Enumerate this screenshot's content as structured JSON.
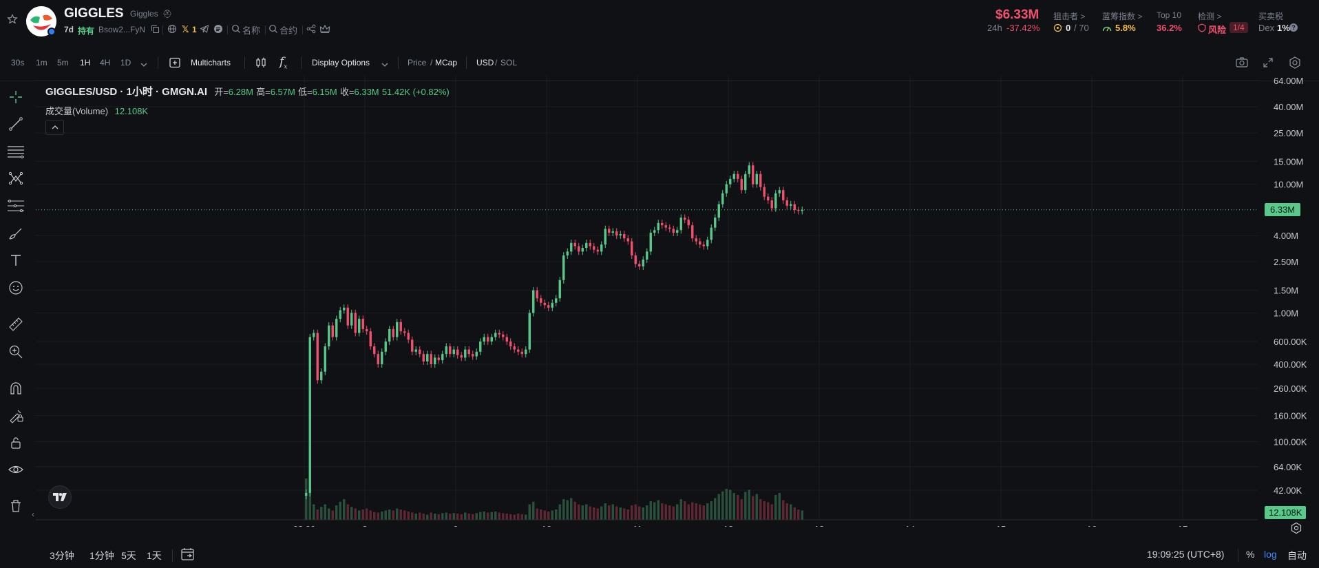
{
  "token": {
    "symbol": "GIGGLES",
    "name": "Giggles",
    "age": "7d",
    "holding_label": "持有",
    "address": "Bsow2...FyN",
    "x_count": "1",
    "name_label": "名称",
    "contract_label": "合约"
  },
  "stats": {
    "price": "$6.33M",
    "change_label": "24h",
    "change": "-37.42%",
    "snipers_label": "狙击者 >",
    "snipers_value": "0",
    "snipers_total": "/ 70",
    "bluechip_label": "蓝筹指数 >",
    "bluechip_value": "5.8%",
    "top10_label": "Top 10",
    "top10_value": "36.2%",
    "check_label": "检测 >",
    "risk_label": "风险",
    "risk_value": "1/4",
    "tax_label": "买卖税",
    "dex_label": "Dex",
    "dex_value": "1%"
  },
  "toolbar": {
    "intervals": [
      "30s",
      "1m",
      "5m",
      "1H",
      "4H",
      "1D"
    ],
    "active_interval": "1H",
    "multicharts": "Multicharts",
    "display_options": "Display Options",
    "price_label": "Price",
    "sep": "/",
    "mcap_label": "MCap",
    "usd_label": "USD",
    "sol_label": "SOL"
  },
  "legend": {
    "title": "GIGGLES/USD · 1小时 · GMGN.AI",
    "open_label": "开=",
    "open": "6.28M",
    "high_label": "高=",
    "high": "6.57M",
    "low_label": "低=",
    "low": "6.15M",
    "close_label": "收=",
    "close": "6.33M",
    "change": "51.42K (+0.82%)",
    "volume_label": "成交量(Volume)",
    "volume": "12.108K"
  },
  "bottom": {
    "ranges": [
      "3分钟",
      "1分钟",
      "5天",
      "1天"
    ],
    "clock": "19:09:25 (UTC+8)",
    "percent": "%",
    "log": "log",
    "auto": "自动"
  },
  "colors": {
    "up": "#58c98b",
    "down": "#f0506e",
    "bg": "#101114"
  },
  "chart_data": {
    "type": "candlestick",
    "title": "GIGGLES/USD · 1小时 · GMGN.AI",
    "scale": "log",
    "y_tick_labels": [
      "64.00M",
      "40.00M",
      "25.00M",
      "15.00M",
      "10.00M",
      "4.00M",
      "2.50M",
      "1.50M",
      "1.00M",
      "600.00K",
      "400.00K",
      "260.00K",
      "160.00K",
      "100.00K",
      "64.00K",
      "42.00K"
    ],
    "y_ticks": [
      64000000,
      40000000,
      25000000,
      15000000,
      10000000,
      4000000,
      2500000,
      1500000,
      1000000,
      600000,
      400000,
      260000,
      160000,
      100000,
      64000,
      42000
    ],
    "x_tick_labels": [
      "08:00",
      "8",
      "9",
      "10",
      "11",
      "12",
      "13",
      "14",
      "15",
      "16",
      "17"
    ],
    "last_price_label": "6.33M",
    "last_price": 6330000,
    "last_volume_label": "12.108K",
    "candles_start_hour": 0,
    "closes": [
      40000,
      650000,
      700000,
      300000,
      350000,
      550000,
      800000,
      650000,
      900000,
      1050000,
      1100000,
      800000,
      1000000,
      700000,
      900000,
      750000,
      720000,
      550000,
      480000,
      400000,
      500000,
      600000,
      750000,
      650000,
      850000,
      720000,
      700000,
      620000,
      500000,
      520000,
      480000,
      420000,
      480000,
      400000,
      450000,
      430000,
      480000,
      550000,
      480000,
      520000,
      470000,
      450000,
      520000,
      480000,
      460000,
      500000,
      600000,
      650000,
      600000,
      650000,
      700000,
      680000,
      650000,
      600000,
      550000,
      520000,
      500000,
      480000,
      520000,
      1000000,
      1500000,
      1300000,
      1200000,
      1150000,
      1100000,
      1200000,
      1300000,
      1800000,
      2800000,
      3000000,
      3500000,
      3300000,
      3000000,
      3200000,
      3500000,
      3300000,
      3100000,
      3000000,
      3400000,
      4500000,
      4200000,
      4300000,
      4000000,
      4100000,
      3800000,
      3600000,
      2800000,
      2400000,
      2300000,
      2600000,
      3000000,
      4200000,
      4400000,
      5000000,
      4800000,
      4600000,
      4500000,
      4200000,
      4400000,
      5500000,
      5300000,
      4800000,
      3800000,
      3600000,
      3400000,
      3300000,
      3700000,
      4600000,
      5500000,
      7000000,
      8500000,
      10000000,
      11000000,
      12000000,
      11000000,
      9000000,
      12000000,
      14000000,
      10000000,
      12000000,
      9500000,
      8000000,
      7500000,
      6500000,
      8500000,
      9000000,
      7500000,
      6800000,
      7000000,
      6300000,
      6200000,
      6330000
    ],
    "volumes": [
      80,
      55,
      30,
      20,
      25,
      30,
      22,
      18,
      28,
      35,
      40,
      30,
      25,
      22,
      18,
      20,
      22,
      18,
      15,
      14,
      16,
      18,
      20,
      18,
      22,
      20,
      18,
      16,
      14,
      12,
      14,
      12,
      10,
      14,
      12,
      11,
      13,
      14,
      12,
      13,
      12,
      11,
      14,
      12,
      11,
      13,
      15,
      16,
      14,
      15,
      16,
      14,
      13,
      12,
      11,
      10,
      12,
      11,
      10,
      30,
      35,
      22,
      20,
      18,
      16,
      18,
      20,
      30,
      40,
      38,
      42,
      35,
      30,
      28,
      30,
      26,
      24,
      22,
      26,
      32,
      28,
      30,
      26,
      24,
      22,
      20,
      28,
      30,
      26,
      24,
      28,
      36,
      34,
      38,
      32,
      30,
      28,
      26,
      30,
      40,
      36,
      30,
      34,
      32,
      30,
      28,
      32,
      36,
      42,
      50,
      55,
      60,
      58,
      52,
      48,
      40,
      54,
      58,
      46,
      50,
      40,
      36,
      34,
      30,
      48,
      52,
      38,
      32,
      30,
      24,
      20,
      18
    ]
  }
}
